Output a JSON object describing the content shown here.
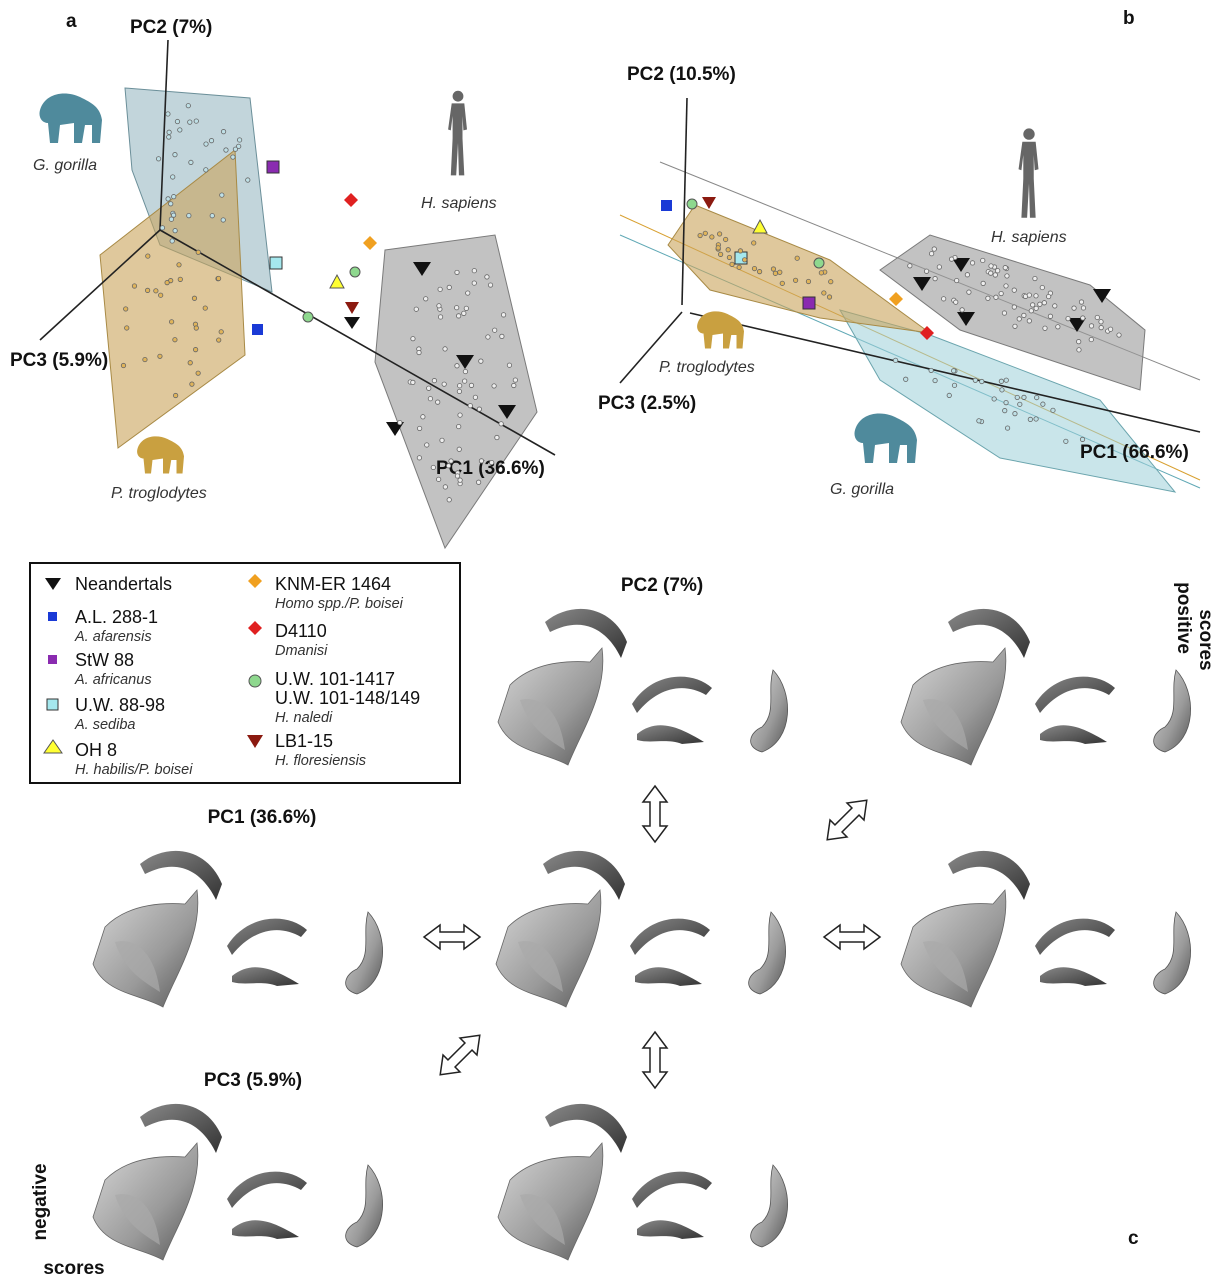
{
  "panel_a": {
    "label": "a",
    "axes": [
      "PC2 (7%)",
      "PC3 (5.9%)",
      "PC1 (36.6%)"
    ],
    "groups": [
      "G. gorilla",
      "H. sapiens",
      "P. troglodytes"
    ]
  },
  "panel_b": {
    "label": "b",
    "axes": [
      "PC2 (10.5%)",
      "PC3 (2.5%)",
      "PC1 (66.6%)"
    ],
    "groups": [
      "H. sapiens",
      "P. troglodytes",
      "G. gorilla"
    ]
  },
  "legend": [
    {
      "names": [
        "Neandertals"
      ]
    },
    {
      "names": [
        "A.L. 288-1"
      ],
      "taxon": "A. afarensis"
    },
    {
      "names": [
        "StW 88"
      ],
      "taxon": "A. africanus"
    },
    {
      "names": [
        "U.W. 88-98"
      ],
      "taxon": "A. sediba"
    },
    {
      "names": [
        "OH 8"
      ],
      "taxon": "H. habilis/P. boisei"
    },
    {
      "names": [
        "KNM-ER 1464"
      ],
      "taxon": "Homo spp./P. boisei"
    },
    {
      "names": [
        "D4110"
      ],
      "taxon": "Dmanisi"
    },
    {
      "names": [
        "U.W. 101-1417",
        "U.W. 101-148/149"
      ],
      "taxon": "H. naledi"
    },
    {
      "names": [
        "LB1-15"
      ],
      "taxon": "H. floresiensis"
    }
  ],
  "panel_c": {
    "label": "c",
    "axes": [
      "PC2 (7%)",
      "PC1 (36.6%)",
      "PC3 (5.9%)"
    ],
    "positive": [
      "positive",
      "scores"
    ],
    "negative": [
      "negative",
      "scores"
    ]
  }
}
